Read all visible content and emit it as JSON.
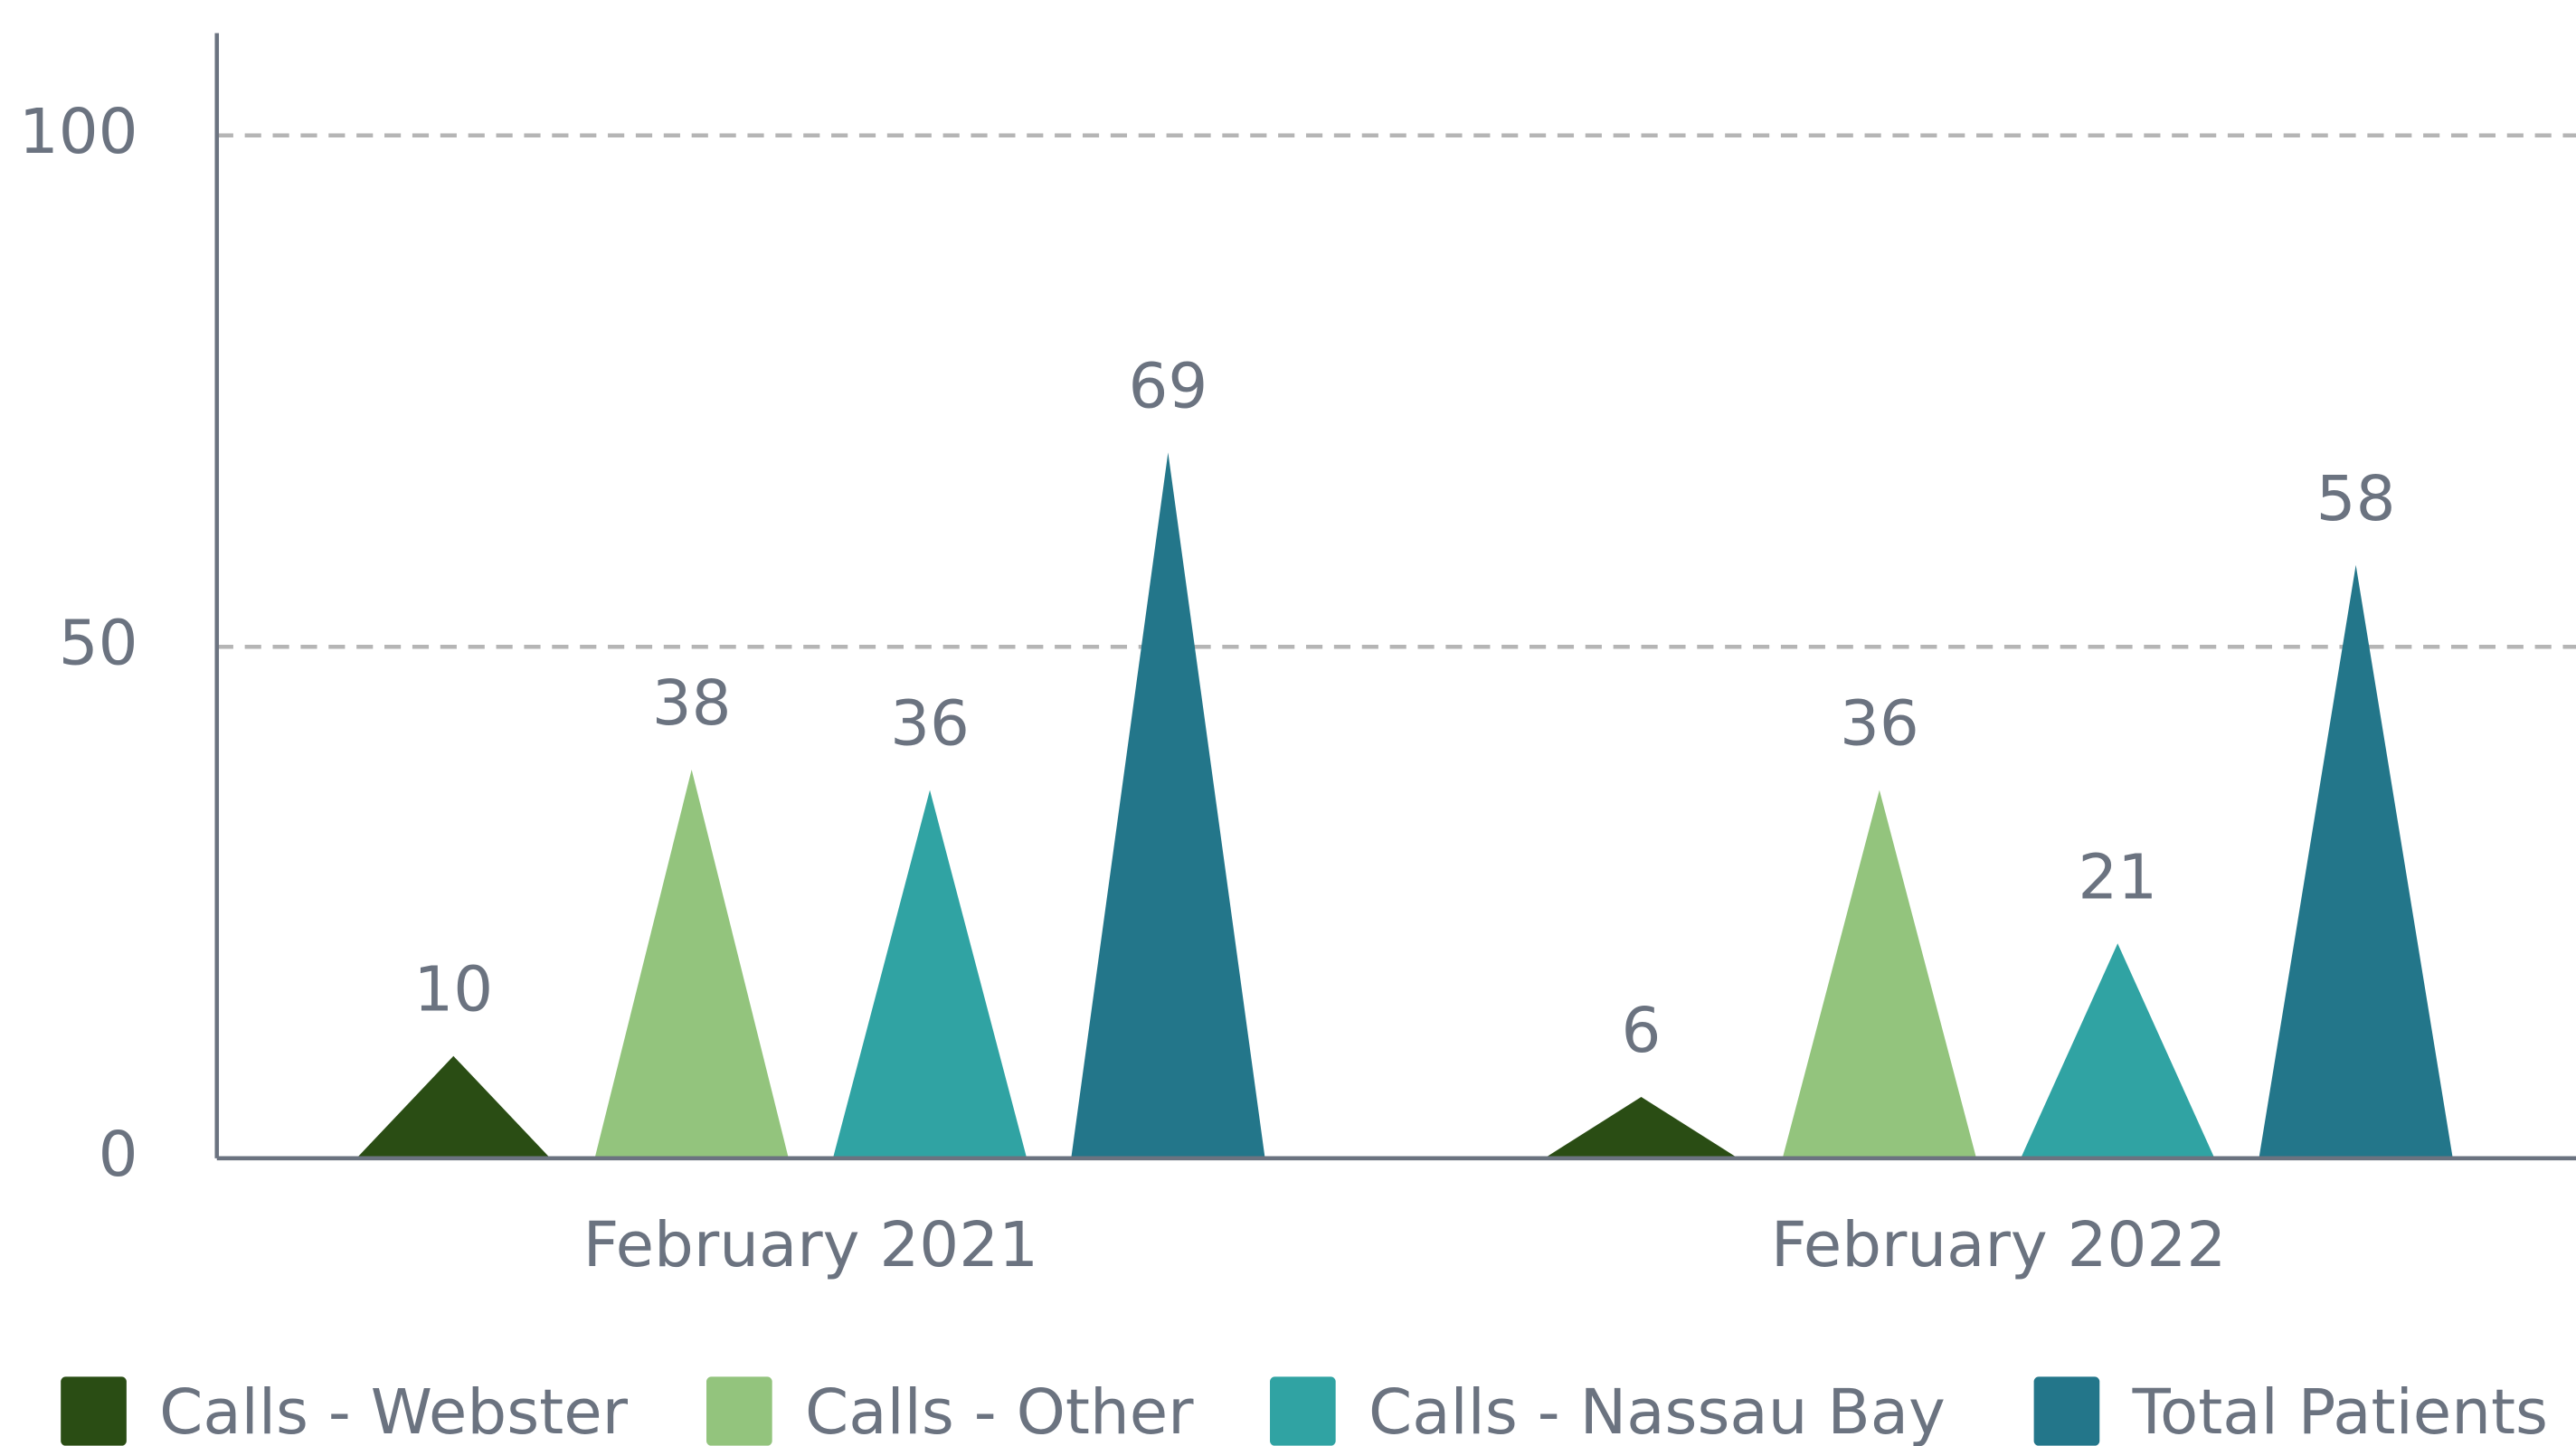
{
  "chart_data": {
    "type": "bar",
    "categories": [
      "February 2021",
      "February 2022"
    ],
    "series": [
      {
        "name": "Calls - Webster",
        "color": "#2a4d14",
        "values": [
          10,
          6
        ]
      },
      {
        "name": "Calls - Other",
        "color": "#93c47d",
        "values": [
          38,
          36
        ]
      },
      {
        "name": "Calls - Nassau Bay",
        "color": "#30a3a3",
        "values": [
          36,
          21
        ]
      },
      {
        "name": "Total Patients",
        "color": "#23768a",
        "values": [
          69,
          58
        ]
      }
    ],
    "ylim": [
      0,
      110
    ],
    "yticks": [
      0,
      50,
      100
    ],
    "grid": true,
    "legend": "bottom"
  }
}
